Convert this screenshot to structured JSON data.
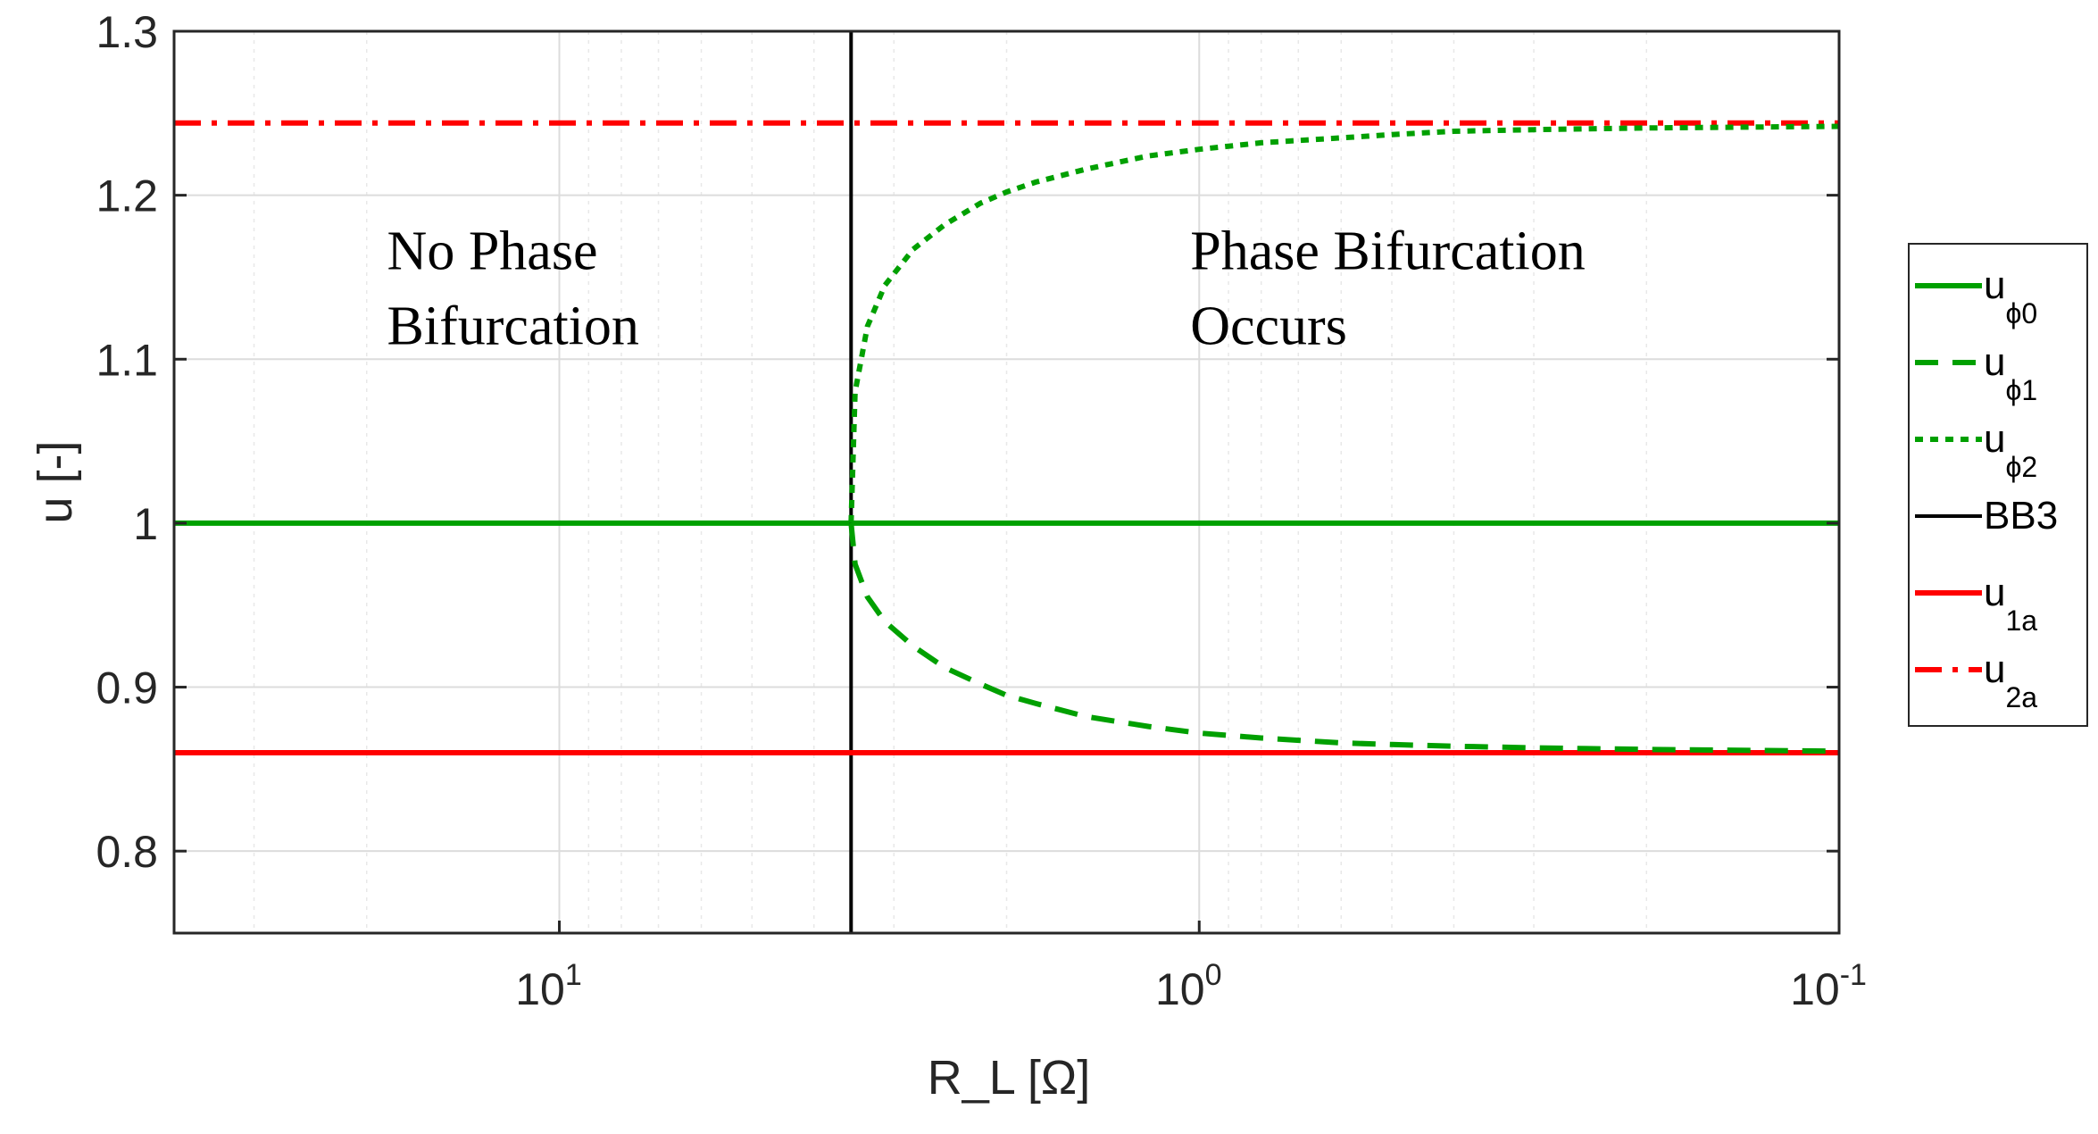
{
  "chart_data": {
    "type": "line",
    "xscale": "log",
    "xaxis_reversed": true,
    "xlim": [
      40,
      0.1
    ],
    "ylim": [
      0.75,
      1.3
    ],
    "grid": true,
    "xlabel": "R_L [Ω]",
    "ylabel": "u [-]",
    "yticks": [
      {
        "value": 0.8,
        "label": "0.8"
      },
      {
        "value": 0.9,
        "label": "0.9"
      },
      {
        "value": 1.0,
        "label": "1"
      },
      {
        "value": 1.1,
        "label": "1.1"
      },
      {
        "value": 1.2,
        "label": "1.2"
      },
      {
        "value": 1.3,
        "label": "1.3"
      }
    ],
    "xticks": [
      {
        "value": 10,
        "base": "10",
        "exponent": "1"
      },
      {
        "value": 1,
        "base": "10",
        "exponent": "0"
      },
      {
        "value": 0.1,
        "base": "10",
        "exponent": "-1"
      }
    ],
    "annotations": [
      {
        "id": "no-bifurcation",
        "lines": [
          "No Phase",
          "Bifurcation"
        ],
        "x": 18,
        "y": 1.17
      },
      {
        "id": "bifurcation",
        "lines": [
          "Phase Bifurcation",
          "Occurs"
        ],
        "x": 1.0,
        "y": 1.17
      }
    ],
    "series": [
      {
        "name": "uϕ0",
        "label_main": "u",
        "label_sub": "ϕ0",
        "color": "#00a000",
        "dash": "solid",
        "x": [
          40,
          0.1
        ],
        "y": [
          1.0,
          1.0
        ]
      },
      {
        "name": "uϕ1",
        "label_main": "u",
        "label_sub": "ϕ1",
        "color": "#00a000",
        "dash": "dashed",
        "x": [
          3.5,
          3.45,
          3.3,
          3.1,
          2.8,
          2.5,
          2.2,
          2.0,
          1.8,
          1.5,
          1.2,
          1.0,
          0.8,
          0.6,
          0.5,
          0.4,
          0.3,
          0.2,
          0.1
        ],
        "y": [
          1.0,
          0.975,
          0.955,
          0.94,
          0.925,
          0.912,
          0.902,
          0.895,
          0.89,
          0.882,
          0.876,
          0.872,
          0.869,
          0.866,
          0.865,
          0.864,
          0.863,
          0.862,
          0.861
        ]
      },
      {
        "name": "uϕ2",
        "label_main": "u",
        "label_sub": "ϕ2",
        "color": "#00a000",
        "dash": "dotted",
        "x": [
          3.5,
          3.45,
          3.3,
          3.1,
          2.8,
          2.5,
          2.2,
          2.0,
          1.8,
          1.5,
          1.2,
          1.0,
          0.8,
          0.6,
          0.5,
          0.4,
          0.3,
          0.2,
          0.1
        ],
        "y": [
          1.0,
          1.08,
          1.12,
          1.145,
          1.167,
          1.182,
          1.195,
          1.202,
          1.208,
          1.216,
          1.224,
          1.228,
          1.232,
          1.235,
          1.237,
          1.239,
          1.24,
          1.241,
          1.242
        ]
      },
      {
        "name": "BB3",
        "label_main": "BB3",
        "label_sub": "",
        "color": "#000000",
        "dash": "solid",
        "x": [
          3.5,
          3.5
        ],
        "y": [
          0.75,
          1.3
        ]
      },
      {
        "name": "u1a",
        "label_main": "u",
        "label_sub": "1a",
        "color": "#ff0000",
        "dash": "solid",
        "x": [
          40,
          0.1
        ],
        "y": [
          0.86,
          0.86
        ]
      },
      {
        "name": "u2a",
        "label_main": "u",
        "label_sub": "2a",
        "color": "#ff0000",
        "dash": "dashdot",
        "x": [
          40,
          0.1
        ],
        "y": [
          1.244,
          1.244
        ]
      }
    ],
    "legend_position": "outside-right"
  }
}
